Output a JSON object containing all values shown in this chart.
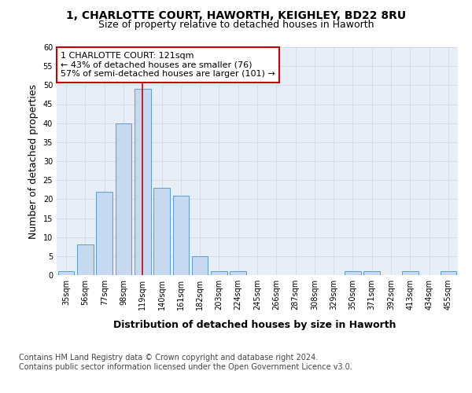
{
  "title_line1": "1, CHARLOTTE COURT, HAWORTH, KEIGHLEY, BD22 8RU",
  "title_line2": "Size of property relative to detached houses in Haworth",
  "xlabel": "Distribution of detached houses by size in Haworth",
  "ylabel": "Number of detached properties",
  "bar_labels": [
    "35sqm",
    "56sqm",
    "77sqm",
    "98sqm",
    "119sqm",
    "140sqm",
    "161sqm",
    "182sqm",
    "203sqm",
    "224sqm",
    "245sqm",
    "266sqm",
    "287sqm",
    "308sqm",
    "329sqm",
    "350sqm",
    "371sqm",
    "392sqm",
    "413sqm",
    "434sqm",
    "455sqm"
  ],
  "bar_values": [
    1,
    8,
    22,
    40,
    49,
    23,
    21,
    5,
    1,
    1,
    0,
    0,
    0,
    0,
    0,
    1,
    1,
    0,
    1,
    0,
    1
  ],
  "bar_color": "#c6d9f0",
  "bar_edge_color": "#5b9bd5",
  "property_line_index": 4,
  "property_line_color": "#cc0000",
  "annotation_text": "1 CHARLOTTE COURT: 121sqm\n← 43% of detached houses are smaller (76)\n57% of semi-detached houses are larger (101) →",
  "annotation_box_color": "#ffffff",
  "annotation_box_edge_color": "#cc0000",
  "ylim": [
    0,
    60
  ],
  "yticks": [
    0,
    5,
    10,
    15,
    20,
    25,
    30,
    35,
    40,
    45,
    50,
    55,
    60
  ],
  "grid_color": "#d4dce8",
  "background_color": "#e8eef8",
  "footer_text": "Contains HM Land Registry data © Crown copyright and database right 2024.\nContains public sector information licensed under the Open Government Licence v3.0.",
  "title_fontsize": 10,
  "subtitle_fontsize": 9,
  "axis_label_fontsize": 9,
  "tick_fontsize": 7,
  "annotation_fontsize": 8,
  "footer_fontsize": 7
}
